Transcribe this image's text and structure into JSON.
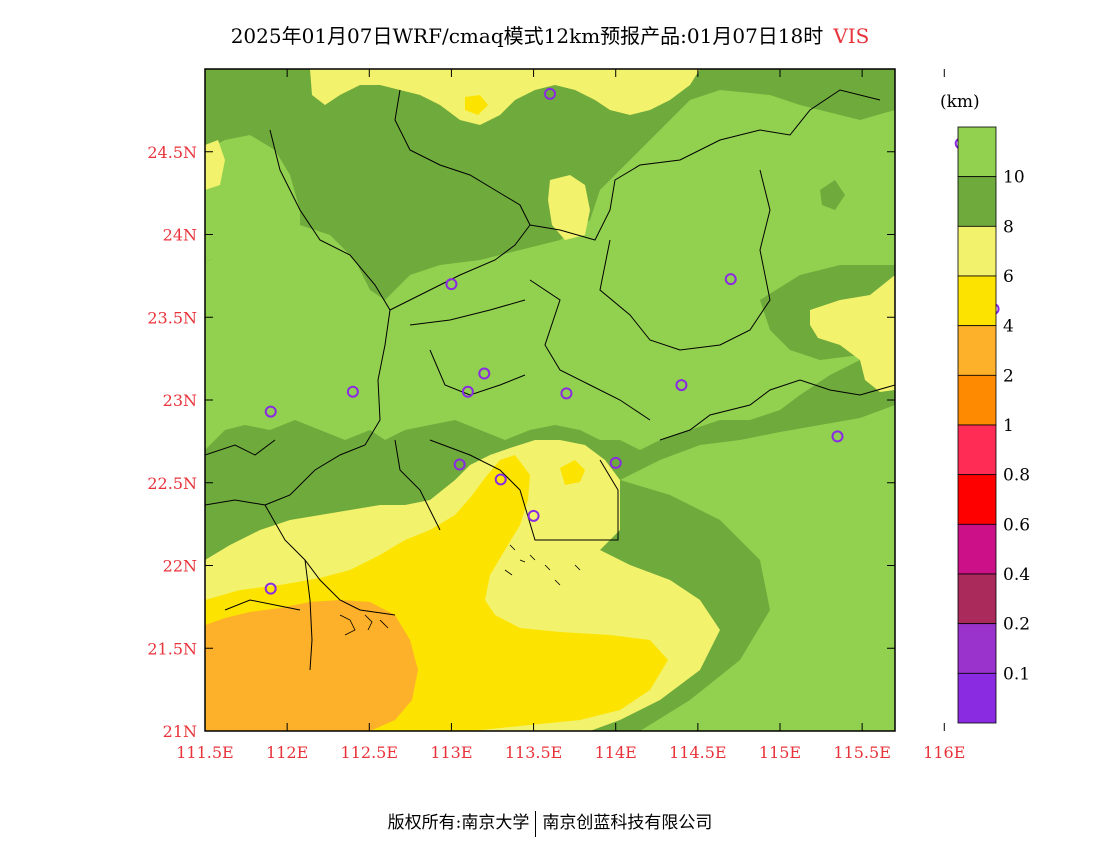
{
  "title": {
    "text": "2025年01月07日WRF/cmaq模式12km预报产品:01月07日18时",
    "variable": "VIS"
  },
  "units": "(km)",
  "lon_labels": [
    "111.5E",
    "112E",
    "112.5E",
    "113E",
    "113.5E",
    "114E",
    "114.5E",
    "115E",
    "115.5E",
    "116E"
  ],
  "lat_labels": [
    "21N",
    "21.5N",
    "22N",
    "22.5N",
    "23N",
    "23.5N",
    "24N",
    "24.5N"
  ],
  "extent": {
    "lon": [
      111.5,
      115.7
    ],
    "lat": [
      21.0,
      25.0
    ]
  },
  "colorbar": {
    "labels": [
      "10",
      "8",
      "6",
      "4",
      "2",
      "1",
      "0.8",
      "0.6",
      "0.4",
      "0.2",
      "0.1"
    ],
    "colors": [
      "#92d050",
      "#6eaa3c",
      "#f2f26c",
      "#fde300",
      "#fdb02a",
      "#fd8a00",
      "#ff2d55",
      "#ff0000",
      "#cc1188",
      "#aa2a5c",
      "#9a33cc",
      "#8a2be2"
    ]
  },
  "stations": [
    {
      "lon": 113.6,
      "lat": 24.85
    },
    {
      "lon": 116.1,
      "lat": 24.55
    },
    {
      "lon": 113.0,
      "lat": 23.7
    },
    {
      "lon": 114.7,
      "lat": 23.73
    },
    {
      "lon": 116.3,
      "lat": 23.55
    },
    {
      "lon": 112.4,
      "lat": 23.05
    },
    {
      "lon": 113.2,
      "lat": 23.16
    },
    {
      "lon": 113.1,
      "lat": 23.05
    },
    {
      "lon": 113.7,
      "lat": 23.04
    },
    {
      "lon": 114.4,
      "lat": 23.09
    },
    {
      "lon": 111.9,
      "lat": 22.93
    },
    {
      "lon": 115.35,
      "lat": 22.78
    },
    {
      "lon": 113.05,
      "lat": 22.61
    },
    {
      "lon": 114.0,
      "lat": 22.62
    },
    {
      "lon": 113.3,
      "lat": 22.52
    },
    {
      "lon": 113.5,
      "lat": 22.3
    },
    {
      "lon": 111.9,
      "lat": 21.86
    }
  ],
  "footer": {
    "left": "版权所有:南京大学",
    "right": "南京创蓝科技有限公司"
  }
}
